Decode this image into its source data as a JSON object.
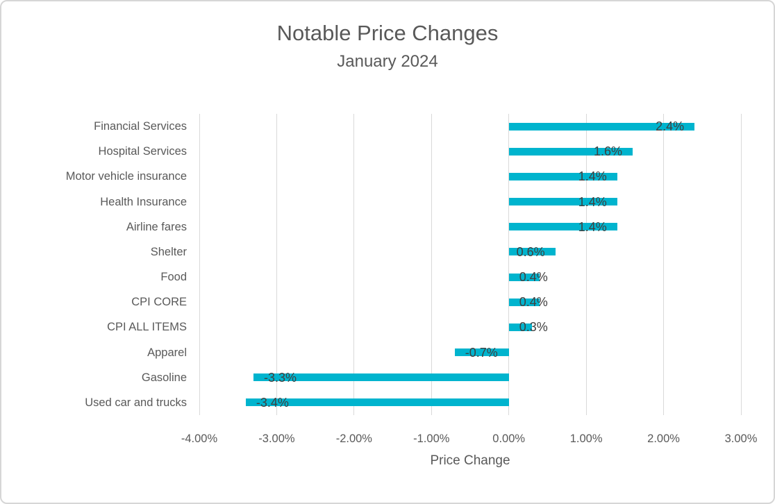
{
  "chart_data": {
    "type": "bar",
    "orientation": "horizontal",
    "title": "Notable Price Changes",
    "subtitle": "January 2024",
    "xlabel": "Price Change",
    "ylabel": "",
    "categories": [
      "Financial Services",
      "Hospital Services",
      "Motor vehicle insurance",
      "Health Insurance",
      "Airline fares",
      "Shelter",
      "Food",
      "CPI CORE",
      "CPI ALL ITEMS",
      "Apparel",
      "Gasoline",
      "Used car and trucks"
    ],
    "values": [
      2.4,
      1.6,
      1.4,
      1.4,
      1.4,
      0.6,
      0.4,
      0.4,
      0.3,
      -0.7,
      -3.3,
      -3.4
    ],
    "data_labels": [
      "2.4%",
      "1.6%",
      "1.4%",
      "1.4%",
      "1.4%",
      "0.6%",
      "0.4%",
      "0.4%",
      "0.3%",
      "-0.7%",
      "-3.3%",
      "-3.4%"
    ],
    "xlim": [
      -4,
      3
    ],
    "xtick_values": [
      -4,
      -3,
      -2,
      -1,
      0,
      1,
      2,
      3
    ],
    "xtick_labels": [
      "-4.00%",
      "-3.00%",
      "-2.00%",
      "-1.00%",
      "0.00%",
      "1.00%",
      "2.00%",
      "3.00%"
    ],
    "grid": true,
    "legend": false,
    "colors": {
      "bar": "#00B4CE",
      "gridline": "#D9D9D9",
      "text": "#595959",
      "data_label": "#404040",
      "frame_border": "#D6D6D6"
    }
  }
}
